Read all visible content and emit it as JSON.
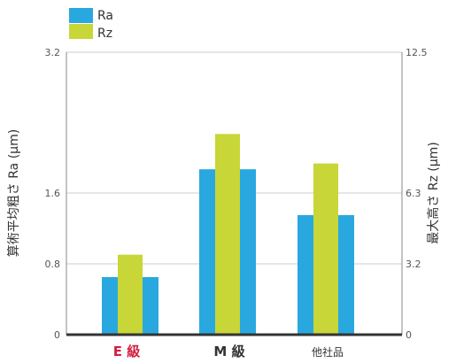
{
  "chart_data": {
    "type": "bar",
    "categories": [
      "E 級",
      "M 級",
      "他社品"
    ],
    "category_colors": [
      "#d02040",
      "#333333",
      "#333333"
    ],
    "series": [
      {
        "name": "Ra",
        "axis": "left",
        "color": "#29a8df",
        "values": [
          0.65,
          1.87,
          1.35
        ]
      },
      {
        "name": "Rz",
        "axis": "right",
        "color": "#c8d637",
        "values": [
          3.6,
          8.9,
          7.6
        ]
      }
    ],
    "y_left": {
      "label": "算術平均粗さ Ra (μm)",
      "ticks": [
        "0",
        "0.8",
        "1.6",
        "3.2"
      ],
      "lim": [
        0,
        3.2
      ]
    },
    "y_right": {
      "label": "最大高さ Rz (μm)",
      "ticks": [
        "0",
        "3.2",
        "6.3",
        "12.5"
      ],
      "lim": [
        0,
        12.5
      ]
    },
    "legend_position": "top-left",
    "grid": true
  }
}
